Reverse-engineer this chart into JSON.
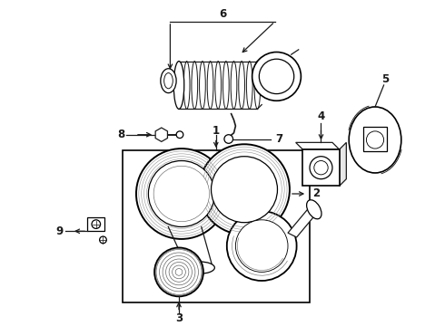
{
  "bg_color": "#ffffff",
  "line_color": "#1a1a1a",
  "label_color": "#000000",
  "lw": 0.9,
  "fig_w": 4.9,
  "fig_h": 3.6,
  "dpi": 100,
  "label_fontsize": 8.5
}
